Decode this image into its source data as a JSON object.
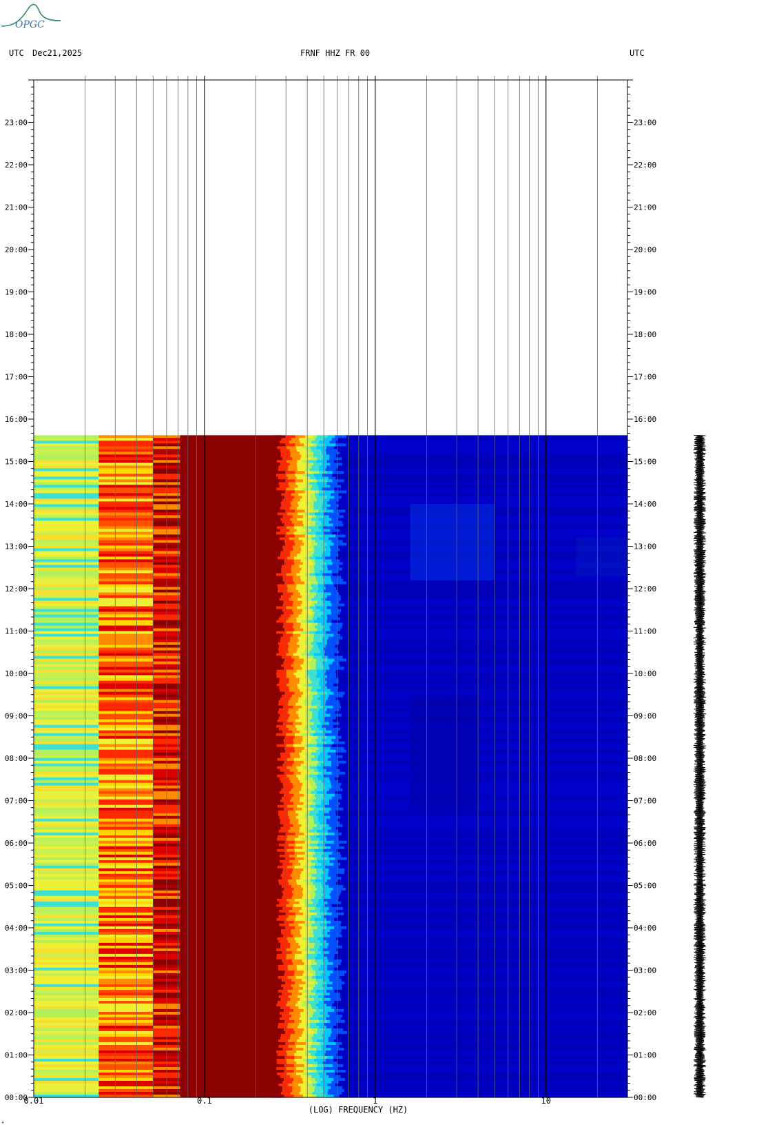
{
  "header": {
    "left_tz": "UTC",
    "date": "Dec21,2025",
    "station": "FRNF HHZ FR 00",
    "right_tz": "UTC"
  },
  "logo": {
    "text": "OPGC",
    "color": "#2e8b57",
    "text_color": "#3a6fb0"
  },
  "footer": {
    "mark": "”"
  },
  "chart_data": {
    "type": "heatmap",
    "title": "FRNF HHZ FR 00",
    "xlabel": "(LOG) FREQUENCY (HZ)",
    "x_scale": "log",
    "x_range": [
      0.01,
      30
    ],
    "x_tick_labels": [
      {
        "value": 0.01,
        "label": "0.01"
      },
      {
        "value": 0.1,
        "label": "0.1"
      },
      {
        "value": 1,
        "label": "1"
      },
      {
        "value": 10,
        "label": "10"
      }
    ],
    "y_range_hours": [
      0,
      24
    ],
    "y_tick_labels": [
      "00:00",
      "01:00",
      "02:00",
      "03:00",
      "04:00",
      "05:00",
      "06:00",
      "07:00",
      "08:00",
      "09:00",
      "10:00",
      "11:00",
      "12:00",
      "13:00",
      "14:00",
      "15:00",
      "16:00",
      "17:00",
      "18:00",
      "19:00",
      "20:00",
      "21:00",
      "22:00",
      "23:00"
    ],
    "data_end_hour": 15.62,
    "grid": "vertical lines at 1-9 multiples of each decade",
    "colormap": [
      "#00008b",
      "#0000cd",
      "#0050ff",
      "#00c8ff",
      "#40e0d0",
      "#b4f05a",
      "#f0f032",
      "#ffd700",
      "#ff8c00",
      "#ff2800",
      "#dc0000",
      "#8b0000"
    ],
    "spectrum_bands": [
      {
        "f_from": 0.01,
        "f_to": 0.024,
        "level": "yellow-green"
      },
      {
        "f_from": 0.024,
        "f_to": 0.05,
        "level": "orange-red"
      },
      {
        "f_from": 0.05,
        "f_to": 0.072,
        "level": "red"
      },
      {
        "f_from": 0.072,
        "f_to": 0.28,
        "level": "dark red"
      },
      {
        "f_from": 0.28,
        "f_to": 0.45,
        "level": "red-orange transition"
      },
      {
        "f_from": 0.45,
        "f_to": 0.6,
        "level": "cyan transition"
      },
      {
        "f_from": 0.6,
        "f_to": 30,
        "level": "blue"
      }
    ],
    "trace": {
      "label": "seismogram",
      "from_hour": 0,
      "to_hour": 15.62
    }
  }
}
